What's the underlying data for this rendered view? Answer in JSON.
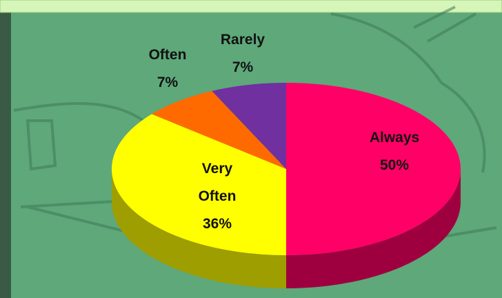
{
  "chart_data": {
    "type": "pie",
    "categories": [
      "Always",
      "Very Often",
      "Often",
      "Rarely"
    ],
    "values": [
      50,
      36,
      7,
      7
    ],
    "value_labels": [
      "50%",
      "36%",
      "7%",
      "7%"
    ],
    "colors": [
      "#ff0066",
      "#ffff00",
      "#ff6a00",
      "#7030a0"
    ]
  }
}
